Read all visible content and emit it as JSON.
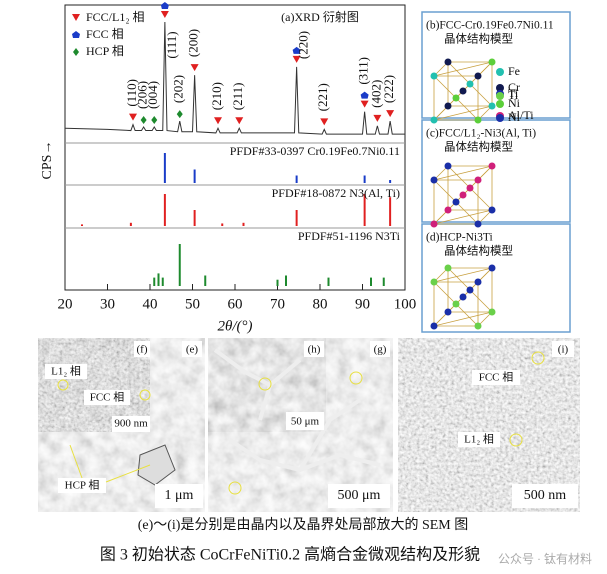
{
  "xrd": {
    "title": "(a)XRD 衍射图",
    "x_label": "2θ/(°)",
    "y_label": "CPS→",
    "xlim": [
      20,
      100
    ],
    "xticks": [
      20,
      30,
      40,
      50,
      60,
      70,
      80,
      90,
      100
    ],
    "ylim": [
      0,
      100
    ],
    "legend": [
      {
        "label": "FCC/L1₂ 相",
        "color": "#e02020"
      },
      {
        "label": "FCC 相",
        "color": "#1a3cc8"
      },
      {
        "label": "HCP 相",
        "color": "#1e8a2e"
      }
    ],
    "pattern": {
      "color": "#333333",
      "x": [
        20,
        30,
        35.5,
        36,
        36.5,
        38,
        38.5,
        39,
        40.5,
        41,
        41.5,
        43,
        43.5,
        44,
        46.5,
        47,
        47.5,
        50,
        50.5,
        51,
        55.5,
        56,
        56.5,
        60.5,
        61,
        61.5,
        74,
        74.5,
        75,
        80.5,
        81,
        81.5,
        90,
        90.5,
        91,
        93,
        93.5,
        94,
        96,
        96.5,
        97,
        100
      ],
      "values": [
        10,
        9,
        8,
        13,
        8,
        8,
        11,
        8,
        8,
        11,
        8,
        8,
        100,
        8,
        7,
        16,
        7,
        7,
        55,
        7,
        6,
        10,
        6,
        6,
        10,
        6,
        6,
        62,
        6,
        5,
        9,
        5,
        5,
        24,
        5,
        5,
        12,
        5,
        5,
        16,
        5,
        5
      ]
    },
    "peaks": [
      {
        "x": 36,
        "label": "(110)",
        "phases": [
          0
        ]
      },
      {
        "x": 38.5,
        "label": "(206)",
        "phases": [
          2
        ]
      },
      {
        "x": 41,
        "label": "(004)",
        "phases": [
          2
        ]
      },
      {
        "x": 43.5,
        "label": "(111)",
        "phases": [
          0,
          1
        ]
      },
      {
        "x": 47,
        "label": "(202)",
        "phases": [
          2
        ]
      },
      {
        "x": 50.5,
        "label": "(200)",
        "phases": [
          0
        ]
      },
      {
        "x": 56,
        "label": "(210)",
        "phases": [
          0
        ]
      },
      {
        "x": 61,
        "label": "(211)",
        "phases": [
          0
        ]
      },
      {
        "x": 74.5,
        "label": "(220)",
        "phases": [
          0,
          1
        ]
      },
      {
        "x": 81,
        "label": "(221)",
        "phases": [
          0
        ]
      },
      {
        "x": 90.5,
        "label": "(311)",
        "phases": [
          0,
          1
        ]
      },
      {
        "x": 93.5,
        "label": "(402)",
        "phases": [
          0
        ]
      },
      {
        "x": 96.5,
        "label": "(222)",
        "phases": [
          0
        ]
      }
    ],
    "references": [
      {
        "label": "PFDF#33-0397 Cr0.19Fe0.7Ni0.11",
        "color": "#1a3cc8",
        "x": [
          43.5,
          50.5,
          74.5,
          90.5,
          96.5
        ],
        "values": [
          100,
          45,
          25,
          25,
          10
        ]
      },
      {
        "label": "PFDF#18-0872 N3(Al, Ti)",
        "color": "#e02020",
        "x": [
          24,
          35.5,
          43.5,
          50.5,
          57,
          62,
          74.5,
          90.5,
          96.5
        ],
        "values": [
          5,
          10,
          100,
          50,
          8,
          10,
          50,
          100,
          90
        ]
      },
      {
        "label": "PFDF#51-1196 N3Ti",
        "color": "#1e8a2e",
        "x": [
          41,
          42,
          43,
          47,
          53,
          70,
          72,
          82,
          92,
          95
        ],
        "values": [
          20,
          30,
          20,
          100,
          25,
          15,
          25,
          20,
          20,
          20
        ]
      }
    ]
  },
  "structures": [
    {
      "title": [
        "(b)FCC-Cr0.19Fe0.7Ni0.11",
        "晶体结构模型"
      ],
      "legend": [
        {
          "label": "Fe",
          "color": "#22c0b0"
        },
        {
          "label": "Cr",
          "color": "#111a50"
        },
        {
          "label": "Ni",
          "color": "#5ccf3a"
        }
      ]
    },
    {
      "title": [
        "(c)FCC/L1₂-Ni3(Al, Ti)",
        "晶体结构模型"
      ],
      "legend": [
        {
          "label": "Ti",
          "color": "#1a2fa8"
        },
        {
          "label": "Al/Ti",
          "color": "#d0207a"
        }
      ]
    },
    {
      "title": [
        "(d)HCP-Ni3Ti",
        "晶体结构模型"
      ],
      "legend": [
        {
          "label": "Ti",
          "color": "#6ad04a"
        },
        {
          "label": "Ni",
          "color": "#1a2fa8"
        }
      ]
    }
  ],
  "sem": {
    "panel_e": {
      "labels": [
        "(f)",
        "(e)"
      ],
      "phase_labels": [
        "L1₂ 相",
        "FCC 相",
        "HCP 相"
      ],
      "scale_bars": [
        "900 nm",
        "1 μm"
      ]
    },
    "panel_g": {
      "labels": [
        "(h)",
        "(g)"
      ],
      "scale_bars": [
        "50 μm",
        "500 μm"
      ]
    },
    "panel_i": {
      "label": "(i)",
      "phase_labels": [
        "FCC 相",
        "L1₂ 相"
      ],
      "scale_bar": "500 nm"
    }
  },
  "captions": {
    "sub": "(e)～(i)是分别是由晶内以及晶界处局部放大的 SEM 图",
    "main": "图 3  初始状态 CoCrFeNiTi0.2 高熵合金微观结构及形貌",
    "watermark": "公众号 · 钛有材料"
  }
}
